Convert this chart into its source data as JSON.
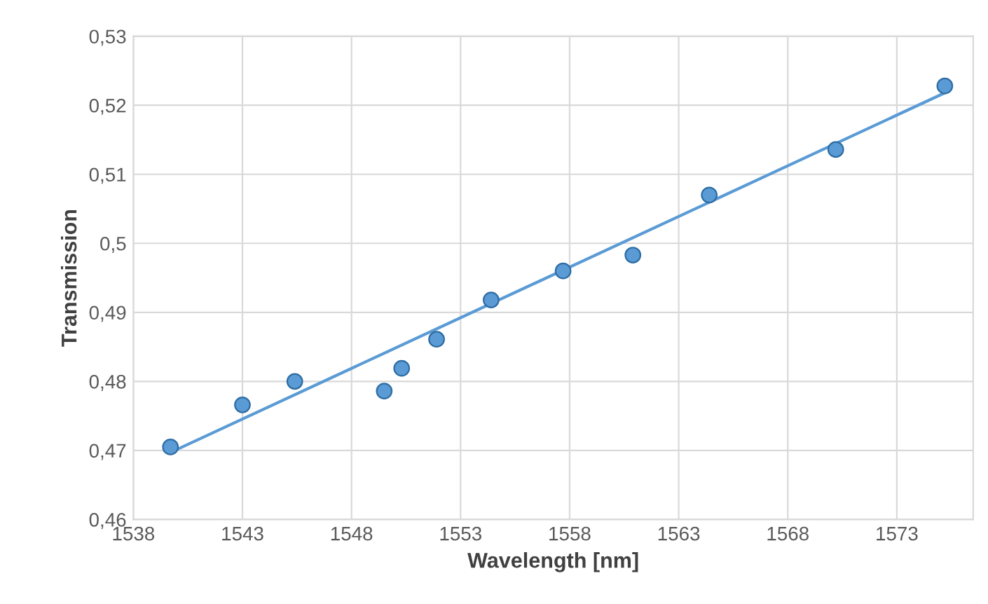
{
  "chart_data": {
    "type": "scatter",
    "xlabel": "Wavelength [nm]",
    "ylabel": "Transmission",
    "x": [
      1539.7,
      1543.0,
      1545.4,
      1549.5,
      1550.3,
      1551.9,
      1554.4,
      1557.7,
      1560.9,
      1564.4,
      1570.2,
      1575.2
    ],
    "series": [
      {
        "color": "#5b9bd5",
        "marker": "circle",
        "values": [
          0.4705,
          0.4766,
          0.48,
          0.4786,
          0.4819,
          0.4861,
          0.4918,
          0.496,
          0.4983,
          0.507,
          0.5136,
          0.5228
        ]
      },
      {
        "type": "line",
        "color": "#5b9bd5",
        "x": [
          1539.7,
          1575.2
        ],
        "values": [
          0.4697,
          0.5218
        ],
        "line_style": "solid"
      }
    ],
    "xlim": [
      1538,
      1576.5
    ],
    "xticks": [
      1538,
      1543,
      1548,
      1553,
      1558,
      1563,
      1568,
      1573
    ],
    "ylim": [
      0.46,
      0.53
    ],
    "yticks": [
      {
        "value": 0.46,
        "label": "0,46"
      },
      {
        "value": 0.47,
        "label": "0,47"
      },
      {
        "value": 0.48,
        "label": "0,48"
      },
      {
        "value": 0.49,
        "label": "0,49"
      },
      {
        "value": 0.5,
        "label": "0,5"
      },
      {
        "value": 0.51,
        "label": "0,51"
      },
      {
        "value": 0.52,
        "label": "0,52"
      },
      {
        "value": 0.53,
        "label": "0,53"
      }
    ],
    "grid": true,
    "legend": false
  }
}
